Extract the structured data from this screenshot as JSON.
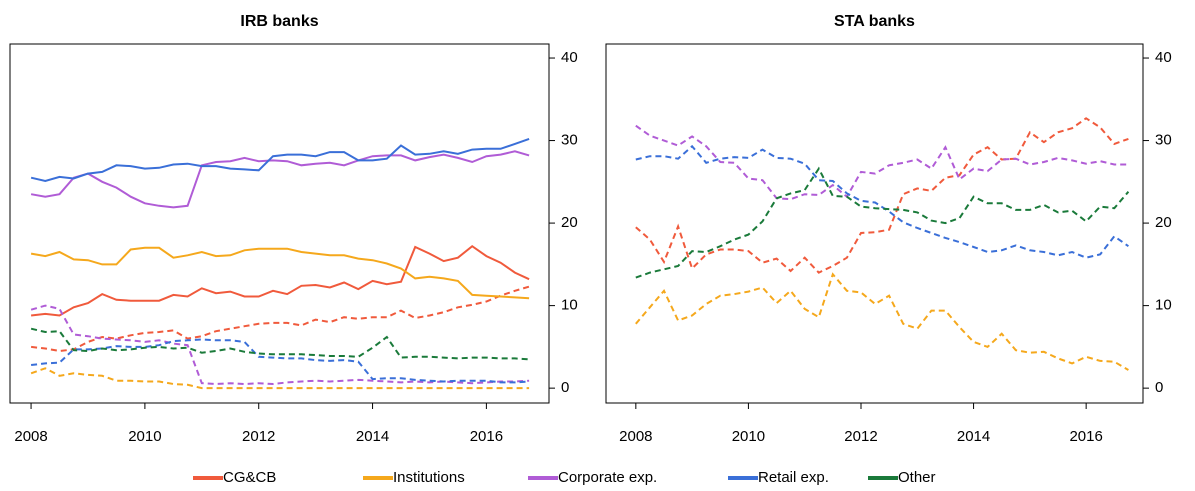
{
  "chart_data": [
    {
      "type": "line",
      "title": "IRB banks",
      "x": [
        2008,
        2008.25,
        2008.5,
        2008.75,
        2009,
        2009.25,
        2009.5,
        2009.75,
        2010,
        2010.25,
        2010.5,
        2010.75,
        2011,
        2011.25,
        2011.5,
        2011.75,
        2012,
        2012.25,
        2012.5,
        2012.75,
        2013,
        2013.25,
        2013.5,
        2013.75,
        2014,
        2014.25,
        2014.5,
        2014.75,
        2015,
        2015.25,
        2015.5,
        2015.75,
        2016,
        2016.25,
        2016.5,
        2016.75
      ],
      "xlim": [
        2007.63,
        2017.1
      ],
      "xticks": [
        2008,
        2010,
        2012,
        2014,
        2016
      ],
      "ylim": [
        -1.8,
        41.7
      ],
      "yticks": [
        0,
        10,
        20,
        30,
        40
      ],
      "y_axis_side": "right",
      "series": [
        {
          "color": "#f05a3c",
          "dashed": false,
          "values": [
            8.8,
            9,
            8.8,
            9.8,
            10.3,
            11.4,
            10.7,
            10.6,
            10.6,
            10.6,
            11.3,
            11.1,
            12.1,
            11.5,
            11.7,
            11.1,
            11.1,
            11.8,
            11.4,
            12.4,
            12.5,
            12.2,
            12.8,
            12,
            13,
            12.6,
            12.9,
            17.1,
            16.3,
            15.4,
            15.8,
            17.2,
            16,
            15.2,
            14,
            13.2
          ]
        },
        {
          "color": "#f05a3c",
          "dashed": true,
          "values": [
            5,
            4.8,
            4.5,
            4.7,
            5.6,
            6.2,
            6,
            6.4,
            6.7,
            6.8,
            7,
            6,
            6.3,
            6.9,
            7.2,
            7.5,
            7.8,
            7.9,
            7.9,
            7.6,
            8.3,
            8,
            8.6,
            8.4,
            8.6,
            8.6,
            9.4,
            8.5,
            8.8,
            9.2,
            9.8,
            10.1,
            10.5,
            11.2,
            11.8,
            12.3
          ]
        },
        {
          "color": "#f5a81c",
          "dashed": false,
          "values": [
            16.3,
            16,
            16.5,
            15.6,
            15.5,
            15,
            15,
            16.8,
            17,
            17,
            15.8,
            16.1,
            16.5,
            16,
            16.1,
            16.7,
            16.9,
            16.9,
            16.9,
            16.5,
            16.3,
            16.1,
            16.1,
            15.7,
            15.5,
            15.1,
            14.5,
            13.3,
            13.5,
            13.3,
            13,
            11.3,
            11.2,
            11.1,
            11,
            10.9
          ]
        },
        {
          "color": "#f5a81c",
          "dashed": true,
          "values": [
            1.8,
            2.4,
            1.5,
            1.8,
            1.6,
            1.5,
            0.9,
            0.9,
            0.8,
            0.8,
            0.5,
            0.4,
            0,
            0,
            0,
            0,
            0,
            0,
            0,
            0,
            0,
            0,
            0,
            0,
            0,
            0,
            0,
            0,
            0,
            0,
            0,
            0,
            0,
            0,
            0,
            0
          ]
        },
        {
          "color": "#b05cd6",
          "dashed": false,
          "values": [
            23.5,
            23.2,
            23.5,
            25.5,
            26,
            25,
            24.3,
            23.2,
            22.4,
            22.1,
            21.9,
            22.1,
            27,
            27.4,
            27.5,
            27.9,
            27.5,
            27.6,
            27.5,
            27,
            27.2,
            27.3,
            27,
            27.6,
            28.1,
            28.2,
            28.2,
            27.6,
            28,
            28.3,
            27.9,
            27.4,
            28.1,
            28.3,
            28.7,
            28.2
          ]
        },
        {
          "color": "#b05cd6",
          "dashed": true,
          "values": [
            9.5,
            10,
            9.6,
            6.5,
            6.3,
            6,
            5.9,
            5.8,
            5.6,
            5.8,
            5.4,
            5.2,
            0.6,
            0.5,
            0.6,
            0.5,
            0.6,
            0.5,
            0.7,
            0.8,
            0.9,
            0.8,
            0.9,
            1,
            0.9,
            0.8,
            0.7,
            0.8,
            0.7,
            0.8,
            0.7,
            0.6,
            0.7,
            0.8,
            0.8,
            0.9
          ]
        },
        {
          "color": "#3a6fd8",
          "dashed": false,
          "values": [
            25.5,
            25.1,
            25.6,
            25.4,
            26,
            26.2,
            27,
            26.9,
            26.6,
            26.7,
            27.1,
            27.2,
            26.9,
            26.9,
            26.6,
            26.5,
            26.4,
            28.1,
            28.3,
            28.3,
            28.1,
            28.6,
            28.6,
            27.6,
            27.6,
            27.8,
            29.4,
            28.3,
            28.4,
            28.7,
            28.4,
            28.9,
            29,
            29,
            29.6,
            30.2
          ]
        },
        {
          "color": "#3a6fd8",
          "dashed": true,
          "values": [
            2.8,
            3,
            3.1,
            4.7,
            4.7,
            4.8,
            5.1,
            5,
            5,
            5.2,
            5.7,
            5.8,
            5.9,
            5.8,
            5.8,
            5.6,
            3.8,
            3.7,
            3.6,
            3.6,
            3.4,
            3.3,
            3.4,
            3.2,
            1.1,
            1.2,
            1.2,
            1,
            0.9,
            0.8,
            0.9,
            0.9,
            0.9,
            0.7,
            0.7,
            0.8
          ]
        },
        {
          "color": "#1a7a3a",
          "dashed": true,
          "values": [
            7.2,
            6.8,
            6.9,
            4.6,
            4.5,
            4.8,
            4.6,
            4.7,
            4.9,
            5,
            4.8,
            4.9,
            4.3,
            4.5,
            4.8,
            4.4,
            4.2,
            4.1,
            4.1,
            4.1,
            4,
            3.9,
            3.9,
            3.8,
            4.9,
            6.2,
            3.7,
            3.8,
            3.8,
            3.7,
            3.6,
            3.7,
            3.7,
            3.6,
            3.6,
            3.5
          ]
        }
      ]
    },
    {
      "type": "line",
      "title": "STA banks",
      "x": [
        2008,
        2008.25,
        2008.5,
        2008.75,
        2009,
        2009.25,
        2009.5,
        2009.75,
        2010,
        2010.25,
        2010.5,
        2010.75,
        2011,
        2011.25,
        2011.5,
        2011.75,
        2012,
        2012.25,
        2012.5,
        2012.75,
        2013,
        2013.25,
        2013.5,
        2013.75,
        2014,
        2014.25,
        2014.5,
        2014.75,
        2015,
        2015.25,
        2015.5,
        2015.75,
        2016,
        2016.25,
        2016.5,
        2016.75
      ],
      "xlim": [
        2007.47,
        2017.01
      ],
      "xticks": [
        2008,
        2010,
        2012,
        2014,
        2016
      ],
      "ylim": [
        -1.8,
        41.7
      ],
      "yticks": [
        0,
        10,
        20,
        30,
        40
      ],
      "y_axis_side": "right",
      "series": [
        {
          "color": "#f05a3c",
          "dashed": true,
          "values": [
            19.5,
            18,
            15.3,
            19.6,
            14.5,
            16.2,
            16.8,
            16.8,
            16.6,
            15.2,
            15.7,
            14.2,
            15.8,
            14,
            14.8,
            15.8,
            18.8,
            18.9,
            19.2,
            23.5,
            24.2,
            23.9,
            25.5,
            25.8,
            28.3,
            29.2,
            27.7,
            27.8,
            31,
            29.8,
            31,
            31.5,
            32.7,
            31.6,
            29.6,
            30.2
          ]
        },
        {
          "color": "#f5a81c",
          "dashed": true,
          "values": [
            7.8,
            9.8,
            11.8,
            8.2,
            8.8,
            10.2,
            11.2,
            11.4,
            11.7,
            12.2,
            10.3,
            11.8,
            9.6,
            8.6,
            13.8,
            11.8,
            11.6,
            10.2,
            11.2,
            7.8,
            7.2,
            9.4,
            9.4,
            7.4,
            5.6,
            5,
            6.6,
            4.6,
            4.3,
            4.4,
            3.6,
            3,
            3.8,
            3.3,
            3.2,
            2.2
          ]
        },
        {
          "color": "#b05cd6",
          "dashed": true,
          "values": [
            31.8,
            30.6,
            30,
            29.4,
            30.5,
            29.3,
            27.4,
            27.3,
            25.4,
            25.2,
            23,
            22.9,
            23.5,
            23.4,
            24.6,
            23.2,
            26.2,
            26,
            27,
            27.3,
            27.7,
            26.6,
            29.2,
            25.3,
            26.6,
            26.3,
            27.7,
            27.8,
            27.1,
            27.4,
            27.9,
            27.6,
            27.2,
            27.5,
            27.1,
            27.1
          ]
        },
        {
          "color": "#3a6fd8",
          "dashed": true,
          "values": [
            27.7,
            28.1,
            28.1,
            27.8,
            29.3,
            27.3,
            27.8,
            28,
            27.9,
            28.9,
            27.9,
            27.8,
            27.2,
            25.2,
            25.1,
            23.6,
            22.7,
            22.5,
            21.4,
            20.1,
            19.4,
            18.8,
            18.2,
            17.7,
            17.1,
            16.5,
            16.7,
            17.3,
            16.7,
            16.5,
            16.1,
            16.5,
            15.8,
            16.2,
            18.4,
            17.2
          ]
        },
        {
          "color": "#1a7a3a",
          "dashed": true,
          "values": [
            13.4,
            14,
            14.4,
            14.8,
            16.6,
            16.5,
            17.2,
            18,
            18.6,
            20.2,
            23,
            23.6,
            24,
            26.6,
            23.3,
            23.2,
            22,
            21.8,
            21.7,
            21.6,
            21.3,
            20.3,
            20,
            20.6,
            23.2,
            22.4,
            22.4,
            21.6,
            21.6,
            22.2,
            21.3,
            21.5,
            20.2,
            22,
            21.8,
            23.8
          ]
        }
      ]
    }
  ],
  "legend": [
    {
      "name": "CG&CB",
      "color": "#f05a3c"
    },
    {
      "name": "Institutions",
      "color": "#f5a81c"
    },
    {
      "name": "Corporate exp.",
      "color": "#b05cd6"
    },
    {
      "name": "Retail exp.",
      "color": "#3a6fd8"
    },
    {
      "name": "Other",
      "color": "#1a7a3a"
    }
  ]
}
